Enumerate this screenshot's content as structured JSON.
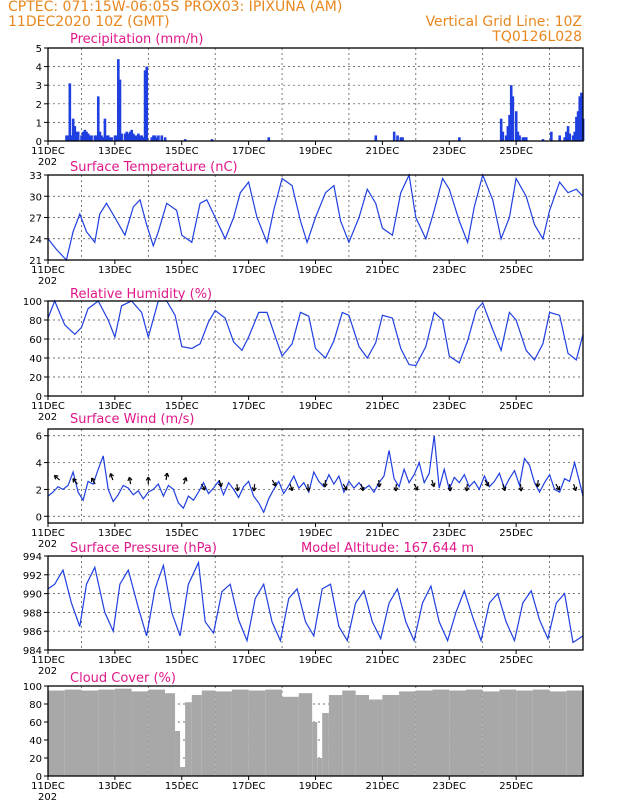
{
  "header": {
    "line1_left": "CPTEC:   071:15W-06:05S   PROX03: IPIXUNA (AM)",
    "line2_left": "11DEC2020 10Z (GMT)",
    "line2_right": "Vertical Grid Line: 10Z",
    "line3_right": "TQ0126L028"
  },
  "colors": {
    "header": "#e8871e",
    "title": "#e0188a",
    "series": "#1f3fe0",
    "cloud": "#a8a8a8"
  },
  "x_axis": {
    "ticks": [
      "11DEC",
      "13DEC",
      "15DEC",
      "17DEC",
      "19DEC",
      "21DEC",
      "23DEC",
      "25DEC"
    ],
    "year_label": "202"
  },
  "chart_data": [
    {
      "id": "precip",
      "type": "bar",
      "title": "Precipitation (mm/h)",
      "ylim": [
        0,
        5
      ],
      "yticks": [
        "0",
        "1",
        "2",
        "3",
        "4",
        "5"
      ],
      "x": [
        0.55,
        0.6,
        0.65,
        0.7,
        0.75,
        0.8,
        0.85,
        0.9,
        1.0,
        1.05,
        1.1,
        1.15,
        1.2,
        1.25,
        1.3,
        1.4,
        1.45,
        1.5,
        1.55,
        1.6,
        1.65,
        1.7,
        1.75,
        1.8,
        1.85,
        1.9,
        2.0,
        2.05,
        2.1,
        2.15,
        2.2,
        2.3,
        2.35,
        2.4,
        2.45,
        2.5,
        2.55,
        2.6,
        2.65,
        2.7,
        2.75,
        2.8,
        2.85,
        2.9,
        2.95,
        3.1,
        3.15,
        3.2,
        3.25,
        3.3,
        3.4,
        3.5,
        4.1,
        4.9,
        6.6,
        9.8,
        10.35,
        10.45,
        10.55,
        10.6,
        12.3,
        13.55,
        13.6,
        13.7,
        13.75,
        13.8,
        13.85,
        13.9,
        14.0,
        14.05,
        14.1,
        14.2,
        14.25,
        14.3,
        14.8,
        15.05,
        15.3,
        15.45,
        15.5,
        15.55,
        15.6,
        15.7,
        15.75,
        15.8,
        15.85,
        15.9,
        15.95,
        16.0
      ],
      "values": [
        0.3,
        0.3,
        3.1,
        0.3,
        1.2,
        0.8,
        0.5,
        0.5,
        0.3,
        0.5,
        0.6,
        0.5,
        0.4,
        0.3,
        0.3,
        0.3,
        0.3,
        2.4,
        0.5,
        0.3,
        0.2,
        1.2,
        0.3,
        0.3,
        0.2,
        0.2,
        0.3,
        0.3,
        4.4,
        3.3,
        0.4,
        0.4,
        0.5,
        0.4,
        0.5,
        0.6,
        0.4,
        0.3,
        0.3,
        0.4,
        0.3,
        0.3,
        0.2,
        3.8,
        4.0,
        0.2,
        0.3,
        0.3,
        0.2,
        0.3,
        0.3,
        0.2,
        0.1,
        0.1,
        0.2,
        0.3,
        0.5,
        0.3,
        0.2,
        0.2,
        0.2,
        1.2,
        0.5,
        0.3,
        0.8,
        1.4,
        3.0,
        2.4,
        1.6,
        0.5,
        0.3,
        0.2,
        0.2,
        0.2,
        0.1,
        0.5,
        0.3,
        0.2,
        0.5,
        0.8,
        0.4,
        0.3,
        0.5,
        1.3,
        1.6,
        2.4,
        2.6,
        1.2
      ]
    },
    {
      "id": "temp",
      "type": "line",
      "title": "Surface Temperature (nC)",
      "ylim": [
        21,
        33
      ],
      "yticks": [
        "21",
        "24",
        "27",
        "30",
        "33"
      ],
      "x": [
        0,
        0.25,
        0.55,
        0.75,
        0.95,
        1.15,
        1.4,
        1.55,
        1.75,
        2.0,
        2.3,
        2.55,
        2.75,
        2.95,
        3.15,
        3.3,
        3.55,
        3.85,
        4.0,
        4.3,
        4.55,
        4.75,
        5.0,
        5.3,
        5.55,
        5.75,
        6.0,
        6.25,
        6.55,
        6.75,
        7.0,
        7.3,
        7.55,
        7.75,
        8.0,
        8.3,
        8.55,
        8.75,
        9.0,
        9.3,
        9.55,
        9.8,
        10.0,
        10.3,
        10.55,
        10.8,
        11.0,
        11.3,
        11.55,
        11.8,
        12.0,
        12.3,
        12.55,
        12.75,
        13.0,
        13.3,
        13.55,
        13.8,
        14.0,
        14.3,
        14.55,
        14.8,
        15.0,
        15.3,
        15.55,
        15.8,
        16.0
      ],
      "values": [
        24,
        22.5,
        21,
        25,
        27.5,
        25,
        23.5,
        27.5,
        29,
        27,
        24.5,
        28.5,
        29.5,
        26,
        23,
        25,
        29,
        28,
        24.5,
        23.5,
        29,
        29.5,
        27,
        24,
        27,
        30.5,
        32,
        27,
        23.5,
        28,
        32.5,
        31.5,
        26.5,
        23.5,
        27,
        30.5,
        31.5,
        26.5,
        23.5,
        27,
        31,
        29,
        25.5,
        24.5,
        30.5,
        33,
        27,
        24,
        28,
        32.5,
        31,
        26.5,
        23.5,
        28.5,
        33,
        29.5,
        24,
        27,
        32.5,
        30,
        26,
        24,
        28,
        32,
        30.5,
        31,
        30
      ]
    },
    {
      "id": "rh",
      "type": "line",
      "title": "Relative Humidity (%)",
      "ylim": [
        0,
        100
      ],
      "yticks": [
        "0",
        "20",
        "40",
        "60",
        "80",
        "100"
      ],
      "x": [
        0,
        0.2,
        0.5,
        0.8,
        1.0,
        1.2,
        1.5,
        1.8,
        2.0,
        2.2,
        2.5,
        2.8,
        3.0,
        3.3,
        3.55,
        3.8,
        4.0,
        4.3,
        4.55,
        4.8,
        5.0,
        5.3,
        5.55,
        5.8,
        6.0,
        6.3,
        6.55,
        6.8,
        7.0,
        7.3,
        7.55,
        7.8,
        8.0,
        8.3,
        8.55,
        8.8,
        9.0,
        9.3,
        9.55,
        9.8,
        10.0,
        10.3,
        10.55,
        10.8,
        11.0,
        11.3,
        11.55,
        11.8,
        12.0,
        12.3,
        12.55,
        12.8,
        13.0,
        13.3,
        13.55,
        13.8,
        14.0,
        14.3,
        14.55,
        14.8,
        15.0,
        15.3,
        15.55,
        15.8,
        16.0
      ],
      "values": [
        82,
        100,
        75,
        65,
        72,
        92,
        100,
        80,
        62,
        95,
        100,
        88,
        62,
        100,
        100,
        85,
        52,
        50,
        55,
        78,
        90,
        82,
        57,
        48,
        62,
        88,
        88,
        62,
        42,
        55,
        88,
        84,
        50,
        40,
        58,
        88,
        85,
        52,
        40,
        56,
        85,
        82,
        50,
        33,
        32,
        52,
        88,
        80,
        42,
        35,
        58,
        90,
        98,
        70,
        48,
        88,
        80,
        48,
        38,
        55,
        88,
        85,
        45,
        38,
        65
      ]
    },
    {
      "id": "wind",
      "type": "line",
      "title": "Surface Wind (m/s)",
      "ylim": [
        -0.5,
        6.5
      ],
      "yticks": [
        "0",
        "2",
        "4",
        "6"
      ],
      "x": [
        0,
        0.15,
        0.3,
        0.45,
        0.6,
        0.75,
        0.9,
        1.05,
        1.2,
        1.35,
        1.5,
        1.65,
        1.8,
        1.95,
        2.1,
        2.25,
        2.4,
        2.55,
        2.7,
        2.85,
        3.0,
        3.15,
        3.3,
        3.45,
        3.6,
        3.75,
        3.9,
        4.05,
        4.2,
        4.35,
        4.5,
        4.65,
        4.8,
        4.95,
        5.1,
        5.25,
        5.4,
        5.55,
        5.7,
        5.85,
        6.0,
        6.15,
        6.3,
        6.45,
        6.6,
        6.75,
        6.9,
        7.05,
        7.2,
        7.35,
        7.5,
        7.65,
        7.8,
        7.95,
        8.1,
        8.25,
        8.4,
        8.55,
        8.7,
        8.85,
        9.0,
        9.15,
        9.3,
        9.45,
        9.6,
        9.75,
        9.9,
        10.05,
        10.2,
        10.35,
        10.5,
        10.65,
        10.8,
        10.95,
        11.1,
        11.25,
        11.4,
        11.55,
        11.7,
        11.85,
        12.0,
        12.15,
        12.3,
        12.45,
        12.6,
        12.75,
        12.9,
        13.05,
        13.2,
        13.35,
        13.5,
        13.65,
        13.8,
        13.95,
        14.1,
        14.25,
        14.4,
        14.55,
        14.7,
        14.85,
        15.0,
        15.15,
        15.3,
        15.45,
        15.6,
        15.75,
        15.9,
        16.0
      ],
      "values": [
        1.5,
        1.8,
        2.2,
        2.0,
        2.3,
        3.3,
        1.8,
        1.2,
        2.6,
        2.4,
        3.5,
        4.5,
        2.0,
        1.1,
        1.6,
        2.3,
        2.1,
        1.6,
        1.9,
        1.3,
        1.8,
        2.0,
        2.4,
        1.5,
        2.3,
        2.0,
        1.0,
        0.6,
        1.5,
        1.2,
        1.8,
        2.5,
        1.7,
        2.1,
        2.6,
        1.6,
        2.5,
        2.0,
        1.4,
        2.2,
        2.6,
        1.5,
        1.0,
        0.3,
        1.3,
        2.0,
        2.6,
        1.7,
        2.3,
        3.0,
        2.1,
        2.5,
        1.8,
        3.3,
        2.6,
        2.2,
        3.1,
        2.4,
        3.0,
        1.8,
        2.6,
        2.1,
        2.5,
        2.0,
        2.3,
        1.8,
        2.5,
        3.0,
        4.9,
        2.8,
        2.2,
        3.5,
        2.5,
        3.1,
        4.0,
        2.5,
        3.2,
        6.0,
        2.1,
        3.5,
        2.0,
        2.9,
        2.5,
        3.1,
        2.2,
        2.6,
        2.0,
        3.0,
        2.2,
        2.6,
        3.2,
        2.1,
        2.8,
        3.4,
        2.3,
        4.3,
        3.8,
        2.5,
        1.8,
        2.5,
        3.1,
        2.0,
        1.8,
        2.8,
        2.6,
        4.0,
        2.5,
        1.5
      ]
    },
    {
      "id": "pres",
      "type": "line",
      "title": "Surface Pressure (hPa)",
      "annotation": "Model Altitude: 167.644 m",
      "ylim": [
        984,
        994
      ],
      "yticks": [
        "984",
        "986",
        "988",
        "990",
        "992",
        "994"
      ],
      "x": [
        0,
        0.2,
        0.45,
        0.7,
        0.95,
        1.15,
        1.4,
        1.7,
        1.95,
        2.15,
        2.4,
        2.7,
        2.95,
        3.2,
        3.45,
        3.7,
        3.95,
        4.2,
        4.5,
        4.7,
        4.95,
        5.2,
        5.45,
        5.7,
        5.95,
        6.2,
        6.45,
        6.7,
        6.95,
        7.2,
        7.45,
        7.7,
        7.95,
        8.2,
        8.45,
        8.7,
        8.95,
        9.2,
        9.45,
        9.7,
        9.95,
        10.2,
        10.45,
        10.7,
        10.95,
        11.2,
        11.45,
        11.7,
        11.95,
        12.2,
        12.45,
        12.7,
        12.95,
        13.2,
        13.45,
        13.7,
        13.95,
        14.2,
        14.45,
        14.7,
        14.95,
        15.2,
        15.45,
        15.7,
        16.0
      ],
      "values": [
        990.5,
        991,
        992.5,
        989,
        986.5,
        991,
        992.8,
        988,
        986,
        991,
        992.5,
        988.5,
        985.5,
        990.5,
        993,
        988,
        985.5,
        991,
        993.3,
        987,
        985.8,
        990.2,
        991,
        987.2,
        985,
        989.5,
        991,
        987,
        985,
        989.5,
        990.5,
        987,
        985.5,
        990.5,
        991,
        986.5,
        985,
        989,
        990.3,
        987,
        985.2,
        989,
        990.5,
        987,
        985,
        989,
        990.8,
        987,
        985,
        988,
        990.3,
        987.5,
        985,
        989,
        990,
        987,
        985,
        989,
        990.3,
        987.2,
        985.2,
        989,
        990,
        984.8,
        985.5
      ]
    },
    {
      "id": "cloud",
      "type": "bar",
      "title": "Cloud Cover (%)",
      "ylim": [
        0,
        100
      ],
      "yticks": [
        "0",
        "20",
        "40",
        "60",
        "80",
        "100"
      ],
      "x": [
        0,
        0.5,
        1.0,
        1.5,
        2.0,
        2.5,
        3.0,
        3.5,
        3.8,
        3.95,
        4.1,
        4.3,
        4.6,
        5.0,
        5.5,
        6.0,
        6.5,
        7.0,
        7.5,
        7.9,
        8.05,
        8.2,
        8.4,
        8.8,
        9.2,
        9.6,
        10.0,
        10.5,
        11.0,
        11.5,
        12.0,
        12.5,
        13.0,
        13.5,
        14.0,
        14.5,
        15.0,
        15.5,
        16.0
      ],
      "values": [
        95,
        96,
        95,
        96,
        97,
        94,
        96,
        92,
        50,
        10,
        82,
        90,
        95,
        94,
        96,
        95,
        96,
        88,
        92,
        60,
        20,
        70,
        90,
        95,
        90,
        85,
        90,
        94,
        95,
        96,
        95,
        96,
        94,
        96,
        95,
        96,
        94,
        95,
        96
      ]
    }
  ]
}
